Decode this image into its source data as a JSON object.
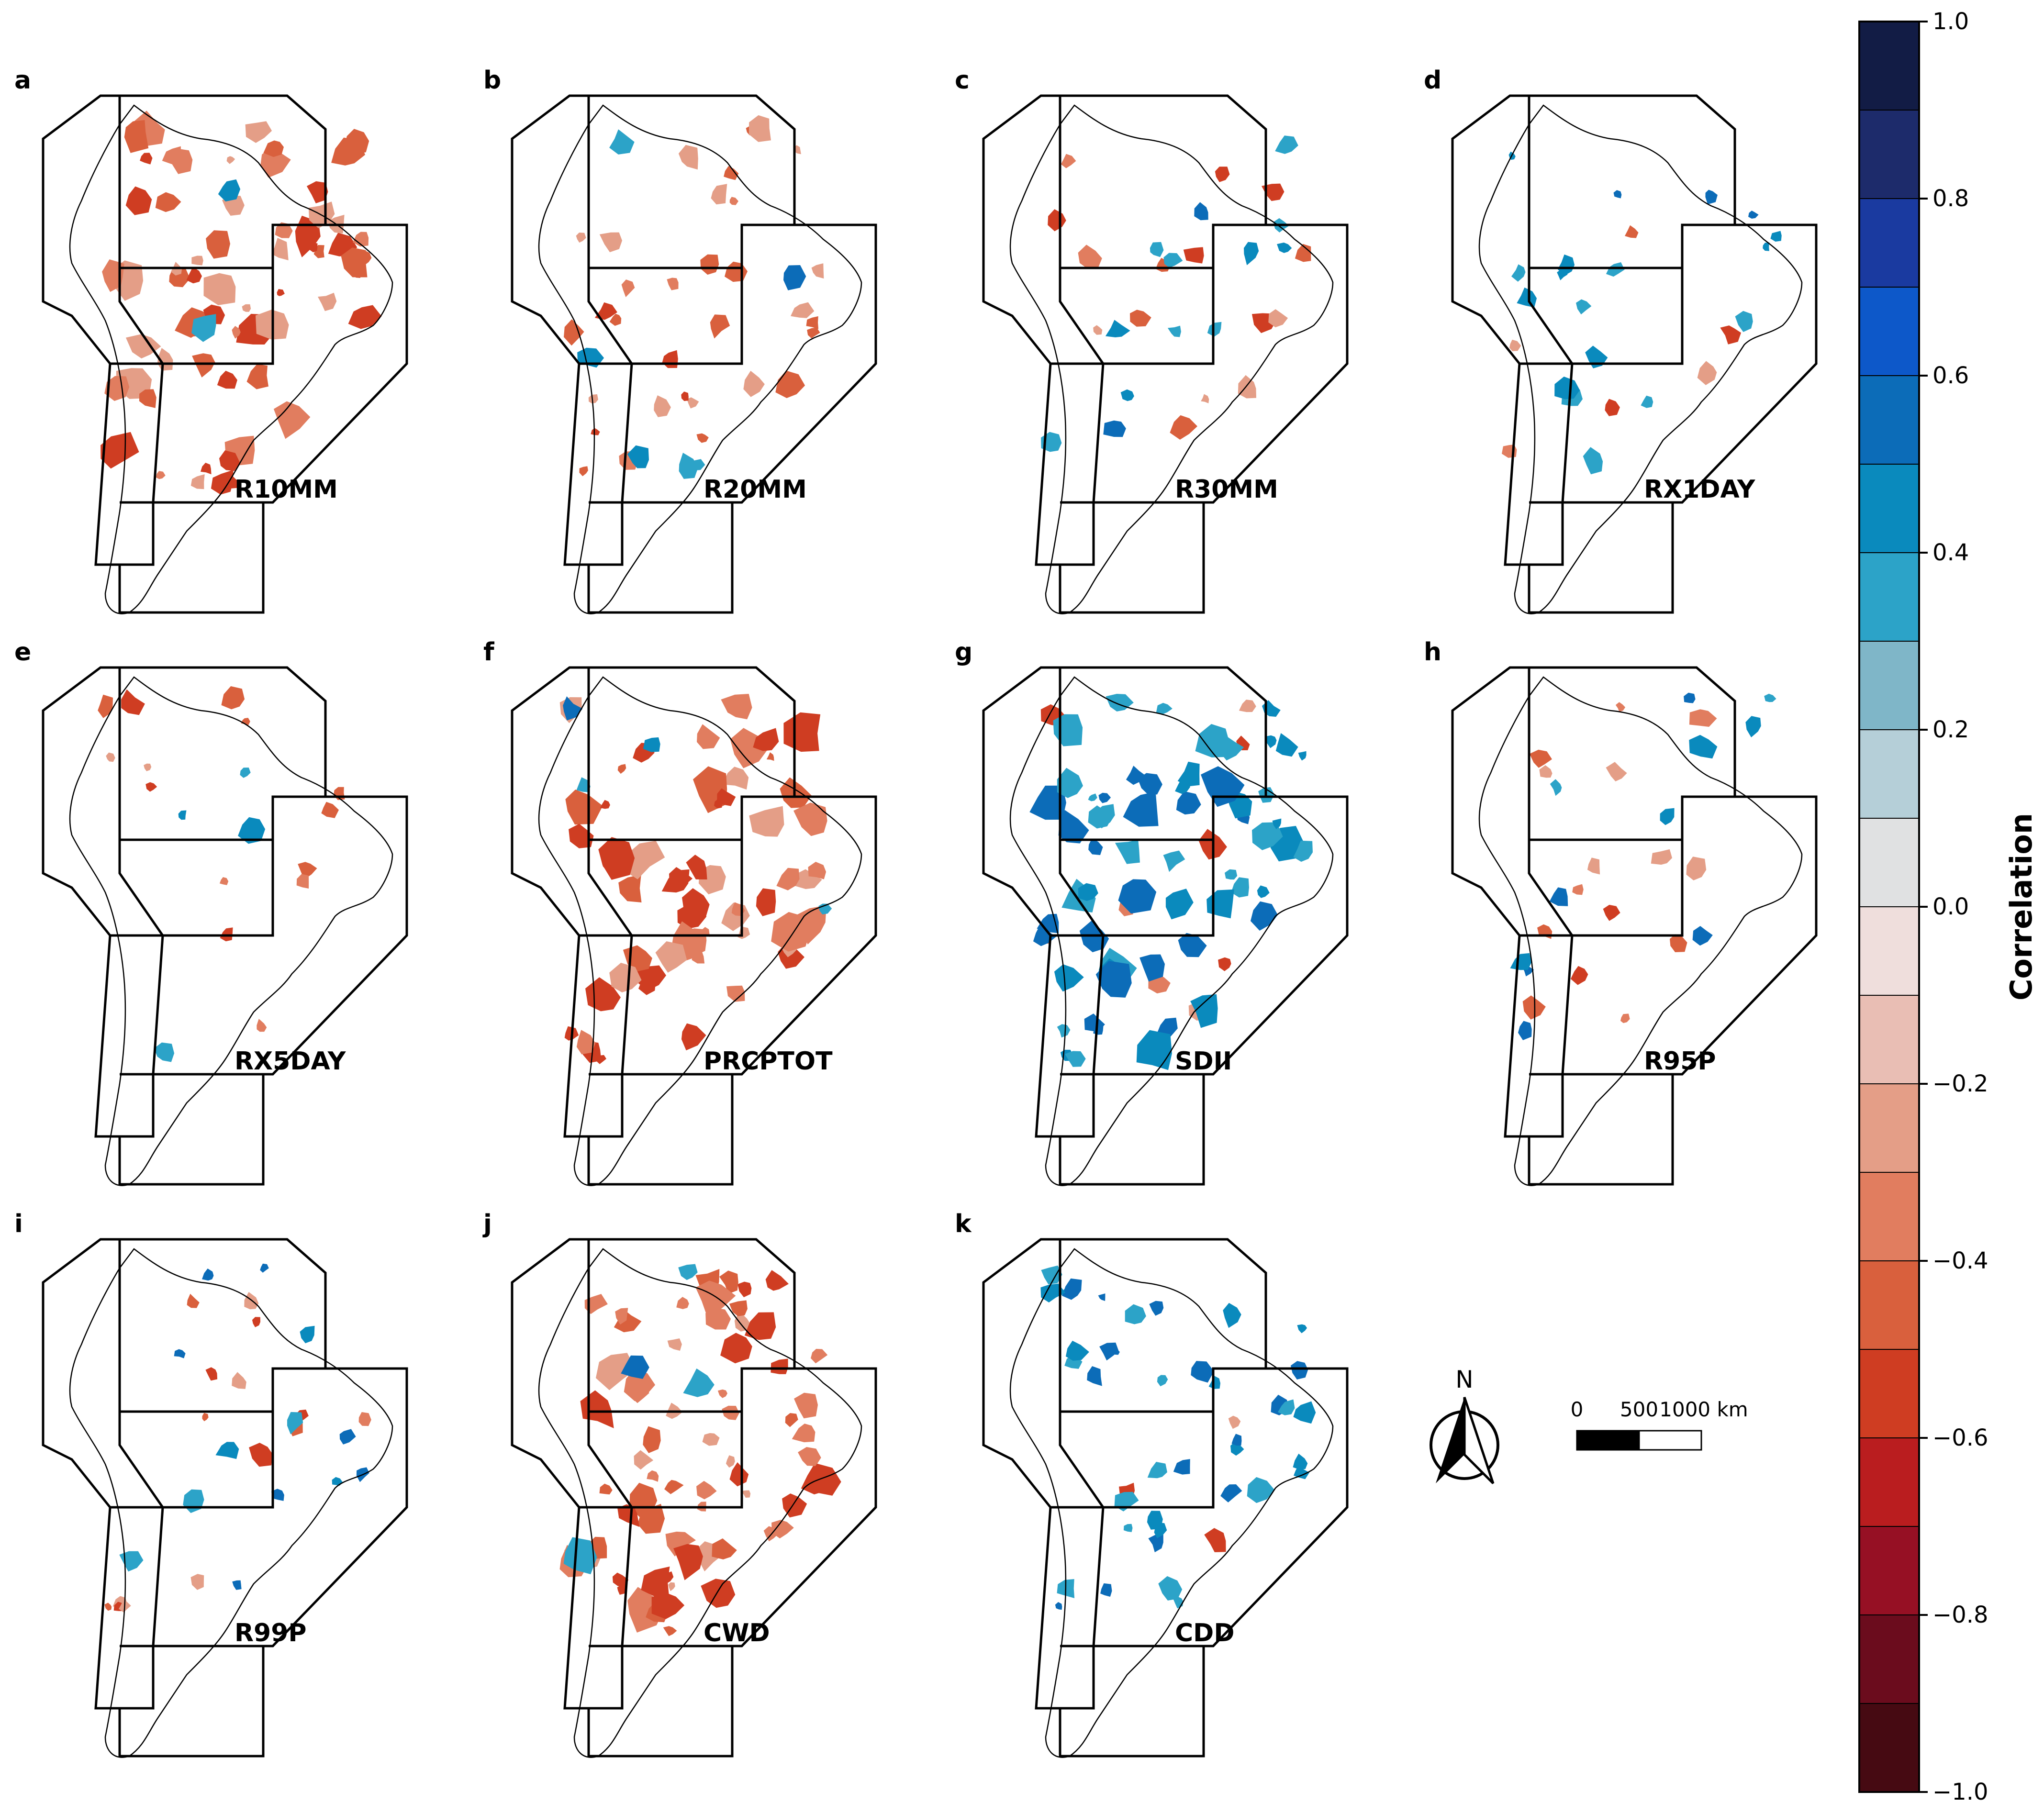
{
  "panels": [
    {
      "letter": "a",
      "index": "R10MM",
      "signal": "red-heavy"
    },
    {
      "letter": "b",
      "index": "R20MM",
      "signal": "red-moderate"
    },
    {
      "letter": "c",
      "index": "R30MM",
      "signal": "mixed-sparse"
    },
    {
      "letter": "d",
      "index": "RX1DAY",
      "signal": "blue-sparse"
    },
    {
      "letter": "e",
      "index": "RX5DAY",
      "signal": "red-sparse"
    },
    {
      "letter": "f",
      "index": "PRCPTOT",
      "signal": "red-heavy"
    },
    {
      "letter": "g",
      "index": "SDII",
      "signal": "blue-heavy"
    },
    {
      "letter": "h",
      "index": "R95P",
      "signal": "mixed-sparse"
    },
    {
      "letter": "i",
      "index": "R99P",
      "signal": "mixed-sparse"
    },
    {
      "letter": "j",
      "index": "CWD",
      "signal": "red-heavy"
    },
    {
      "letter": "k",
      "index": "CDD",
      "signal": "blue-moderate"
    }
  ],
  "colorbar": {
    "title": "Correlation",
    "ticks": [
      "1.0",
      "0.8",
      "0.6",
      "0.4",
      "0.2",
      "0.0",
      "−0.2",
      "−0.4",
      "−0.6",
      "−0.8",
      "−1.0"
    ],
    "colors": [
      "#121c45",
      "#1d2b6b",
      "#1a3aa0",
      "#0d58c9",
      "#0c6cb8",
      "#0a8abd",
      "#2ca3c8",
      "#7fb6c8",
      "#b5cfd8",
      "#e0e1e2",
      "#efdedc",
      "#e9beb4",
      "#e49e87",
      "#e17d5f",
      "#d9603d",
      "#cf3d22",
      "#ba1d1f",
      "#961024",
      "#6b0c1d",
      "#460a12"
    ]
  },
  "north_arrow": {
    "label": "N"
  },
  "scale_bar": {
    "labels": [
      "0",
      "500",
      "1000 km"
    ]
  }
}
